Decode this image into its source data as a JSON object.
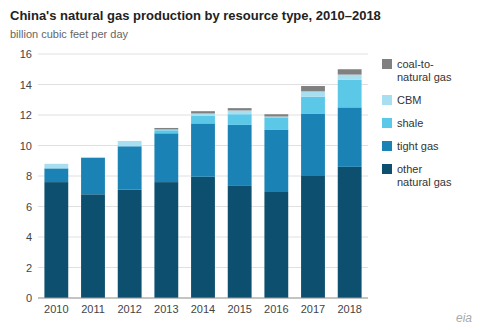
{
  "chart_data": {
    "type": "bar",
    "stacked": true,
    "title": "China's natural gas production by resource type, 2010–2018",
    "subtitle": "billion cubic feet per day",
    "annotations": [
      "eia"
    ],
    "categories": [
      "2010",
      "2011",
      "2012",
      "2013",
      "2014",
      "2015",
      "2016",
      "2017",
      "2018"
    ],
    "series": [
      {
        "name": "other\nnatural gas",
        "color": "#0d4f6e",
        "values": [
          7.6,
          6.8,
          7.1,
          7.6,
          7.95,
          7.35,
          6.95,
          8.0,
          8.6
        ]
      },
      {
        "name": "tight gas",
        "color": "#1a82b4",
        "values": [
          0.9,
          2.4,
          2.85,
          3.2,
          3.5,
          4.0,
          4.1,
          4.1,
          3.9
        ]
      },
      {
        "name": "shale",
        "color": "#5bc8e8",
        "values": [
          0.0,
          0.0,
          0.0,
          0.2,
          0.5,
          0.7,
          0.8,
          1.1,
          1.8
        ]
      },
      {
        "name": "CBM",
        "color": "#a8dff0",
        "values": [
          0.3,
          0.05,
          0.35,
          0.05,
          0.15,
          0.25,
          0.05,
          0.35,
          0.35
        ]
      },
      {
        "name": "coal-to-\nnatural gas",
        "color": "#808080",
        "values": [
          0.0,
          0.0,
          0.0,
          0.1,
          0.15,
          0.15,
          0.15,
          0.35,
          0.35
        ]
      }
    ],
    "ylim": [
      0,
      16
    ],
    "yticks": [
      0,
      2,
      4,
      6,
      8,
      10,
      12,
      14,
      16
    ],
    "grid": true,
    "legend": "right"
  }
}
